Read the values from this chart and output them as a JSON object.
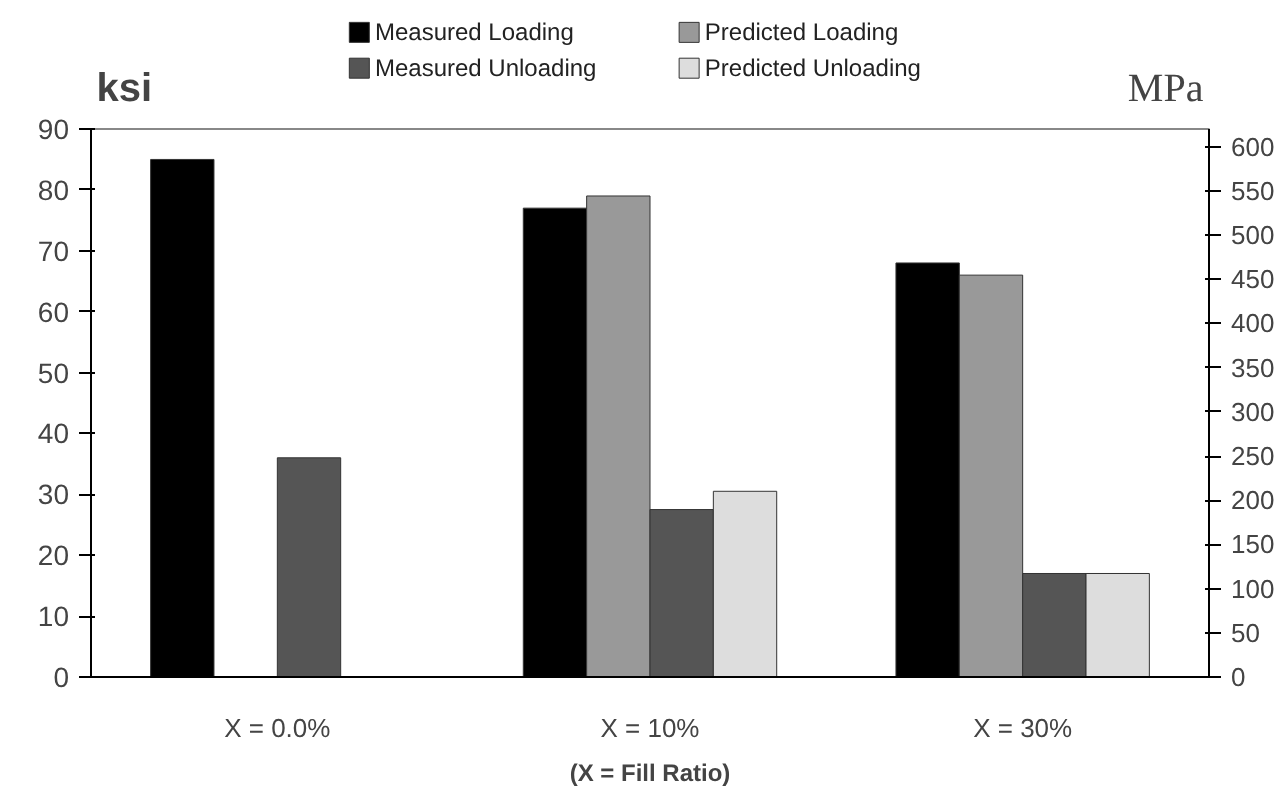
{
  "chart_data": {
    "type": "bar",
    "ylabel": "ksi",
    "y2label": "MPa",
    "xlabel": "(X = Fill Ratio)",
    "categories": [
      "X = 0.0%",
      "X = 10%",
      "X = 30%"
    ],
    "series": [
      {
        "name": "Measured Loading",
        "color": "#000000",
        "values": [
          85,
          77,
          68
        ]
      },
      {
        "name": "Predicted Loading",
        "color": "#999999",
        "values": [
          null,
          79,
          66
        ]
      },
      {
        "name": "Measured Unloading",
        "color": "#555555",
        "values": [
          36,
          27.5,
          17
        ]
      },
      {
        "name": "Predicted Unloading",
        "color": "#dddddd",
        "values": [
          null,
          30.5,
          17
        ]
      }
    ],
    "ylim": [
      0,
      90
    ],
    "yticks": [
      0,
      10,
      20,
      30,
      40,
      50,
      60,
      70,
      80,
      90
    ],
    "y2lim": [
      0,
      620
    ],
    "y2ticks": [
      0,
      50,
      100,
      150,
      200,
      250,
      300,
      350,
      400,
      450,
      500,
      550,
      600
    ],
    "grid": false,
    "legend": "top"
  }
}
